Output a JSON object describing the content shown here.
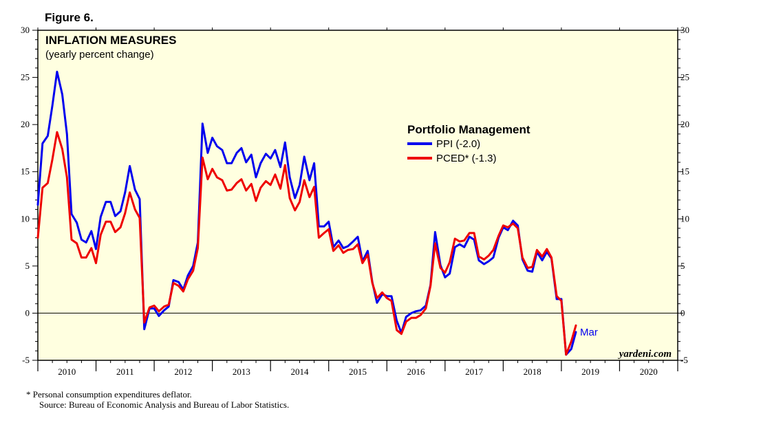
{
  "figure_label": "Figure 6.",
  "chart_data": {
    "type": "line",
    "title": "INFLATION MEASURES",
    "subtitle": "(yearly percent change)",
    "ylim": [
      -5,
      30
    ],
    "yticks": [
      -5,
      0,
      5,
      10,
      15,
      20,
      25,
      30
    ],
    "ytick_labels": [
      "-5",
      "0",
      "5",
      "10",
      "15",
      "20",
      "25",
      "30"
    ],
    "xlim": [
      2010.0,
      2021.0
    ],
    "year_labels": [
      "2010",
      "2011",
      "2012",
      "2013",
      "2014",
      "2015",
      "2016",
      "2017",
      "2018",
      "2019",
      "2020"
    ],
    "legend_title": "Portfolio Management",
    "grid": false,
    "series": [
      {
        "name": "PPI (-2.0)",
        "color": "#0000ee",
        "x": [
          2010.0,
          2010.08,
          2010.17,
          2010.25,
          2010.33,
          2010.42,
          2010.5,
          2010.58,
          2010.67,
          2010.75,
          2010.83,
          2010.92,
          2011.0,
          2011.08,
          2011.17,
          2011.25,
          2011.33,
          2011.42,
          2011.5,
          2011.58,
          2011.67,
          2011.75,
          2011.83,
          2011.92,
          2012.0,
          2012.08,
          2012.17,
          2012.25,
          2012.33,
          2012.42,
          2012.5,
          2012.58,
          2012.67,
          2012.75,
          2012.83,
          2012.92,
          2013.0,
          2013.08,
          2013.17,
          2013.25,
          2013.33,
          2013.42,
          2013.5,
          2013.58,
          2013.67,
          2013.75,
          2013.83,
          2013.92,
          2014.0,
          2014.08,
          2014.17,
          2014.25,
          2014.33,
          2014.42,
          2014.5,
          2014.58,
          2014.67,
          2014.75,
          2014.83,
          2014.92,
          2015.0,
          2015.08,
          2015.17,
          2015.25,
          2015.33,
          2015.42,
          2015.5,
          2015.58,
          2015.67,
          2015.75,
          2015.83,
          2015.92,
          2016.0,
          2016.08,
          2016.17,
          2016.25,
          2016.33,
          2016.42,
          2016.5,
          2016.58,
          2016.67,
          2016.75,
          2016.83,
          2016.92,
          2017.0,
          2017.08,
          2017.17,
          2017.25,
          2017.33,
          2017.42,
          2017.5,
          2017.58,
          2017.67,
          2017.75,
          2017.83,
          2017.92,
          2018.0,
          2018.08,
          2018.17,
          2018.25,
          2018.33,
          2018.42,
          2018.5,
          2018.58,
          2018.67,
          2018.75,
          2018.83,
          2018.92,
          2019.0,
          2019.08,
          2019.17,
          2019.25
        ],
        "values": [
          11.5,
          18.0,
          18.8,
          22.0,
          25.6,
          23.2,
          19.0,
          10.5,
          9.6,
          7.8,
          7.5,
          8.7,
          6.8,
          10.2,
          11.8,
          11.8,
          10.3,
          10.8,
          12.8,
          15.6,
          13.1,
          12.1,
          -1.7,
          0.5,
          0.5,
          -0.3,
          0.3,
          0.7,
          3.5,
          3.3,
          2.5,
          4.0,
          5.0,
          7.5,
          20.1,
          17.0,
          18.6,
          17.7,
          17.3,
          15.9,
          15.9,
          17.0,
          17.5,
          16.0,
          16.8,
          14.4,
          15.9,
          16.9,
          16.4,
          17.3,
          15.5,
          18.1,
          14.4,
          12.2,
          13.6,
          16.6,
          14.1,
          15.9,
          9.2,
          9.2,
          9.7,
          7.0,
          7.7,
          6.9,
          7.1,
          7.6,
          8.1,
          5.5,
          6.6,
          3.3,
          1.1,
          2.0,
          1.8,
          1.8,
          -0.8,
          -2.1,
          -0.4,
          0.0,
          0.2,
          0.3,
          0.8,
          3.0,
          8.6,
          5.1,
          3.8,
          4.2,
          7.0,
          7.3,
          7.0,
          8.1,
          7.8,
          5.6,
          5.2,
          5.5,
          5.9,
          8.0,
          9.1,
          8.8,
          9.8,
          9.3,
          5.7,
          4.5,
          4.4,
          6.5,
          5.6,
          6.5,
          5.8,
          1.5,
          1.5,
          -4.4,
          -3.8,
          -2.0
        ]
      },
      {
        "name": "PCED* (-1.3)",
        "color": "#ee0000",
        "x": [
          2010.0,
          2010.08,
          2010.17,
          2010.25,
          2010.33,
          2010.42,
          2010.5,
          2010.58,
          2010.67,
          2010.75,
          2010.83,
          2010.92,
          2011.0,
          2011.08,
          2011.17,
          2011.25,
          2011.33,
          2011.42,
          2011.5,
          2011.58,
          2011.67,
          2011.75,
          2011.83,
          2011.92,
          2012.0,
          2012.08,
          2012.17,
          2012.25,
          2012.33,
          2012.42,
          2012.5,
          2012.58,
          2012.67,
          2012.75,
          2012.83,
          2012.92,
          2013.0,
          2013.08,
          2013.17,
          2013.25,
          2013.33,
          2013.42,
          2013.5,
          2013.58,
          2013.67,
          2013.75,
          2013.83,
          2013.92,
          2014.0,
          2014.08,
          2014.17,
          2014.25,
          2014.33,
          2014.42,
          2014.5,
          2014.58,
          2014.67,
          2014.75,
          2014.83,
          2014.92,
          2015.0,
          2015.08,
          2015.17,
          2015.25,
          2015.33,
          2015.42,
          2015.5,
          2015.58,
          2015.67,
          2015.75,
          2015.83,
          2015.92,
          2016.0,
          2016.08,
          2016.17,
          2016.25,
          2016.33,
          2016.42,
          2016.5,
          2016.58,
          2016.67,
          2016.75,
          2016.83,
          2016.92,
          2017.0,
          2017.08,
          2017.17,
          2017.25,
          2017.33,
          2017.42,
          2017.5,
          2017.58,
          2017.67,
          2017.75,
          2017.83,
          2017.92,
          2018.0,
          2018.08,
          2018.17,
          2018.25,
          2018.33,
          2018.42,
          2018.5,
          2018.58,
          2018.67,
          2018.75,
          2018.83,
          2018.92,
          2019.0,
          2019.08,
          2019.17,
          2019.25
        ],
        "values": [
          8.0,
          13.3,
          13.8,
          16.3,
          19.2,
          17.4,
          14.4,
          7.8,
          7.4,
          5.9,
          5.9,
          6.9,
          5.3,
          8.3,
          9.7,
          9.7,
          8.6,
          9.1,
          10.6,
          12.8,
          11.0,
          10.1,
          -1.0,
          0.6,
          0.8,
          0.2,
          0.7,
          0.9,
          3.2,
          2.9,
          2.3,
          3.6,
          4.5,
          6.9,
          16.5,
          14.2,
          15.3,
          14.4,
          14.1,
          13.0,
          13.1,
          13.8,
          14.2,
          13.0,
          13.7,
          11.9,
          13.3,
          14.0,
          13.6,
          14.7,
          13.2,
          15.7,
          12.2,
          10.9,
          11.8,
          14.1,
          12.3,
          13.4,
          8.0,
          8.5,
          8.9,
          6.6,
          7.2,
          6.4,
          6.7,
          6.8,
          7.3,
          5.3,
          6.2,
          3.2,
          1.6,
          2.2,
          1.6,
          1.3,
          -1.8,
          -2.2,
          -0.9,
          -0.5,
          -0.5,
          -0.2,
          0.5,
          2.9,
          7.4,
          4.8,
          4.3,
          5.4,
          7.9,
          7.6,
          7.7,
          8.5,
          8.5,
          6.0,
          5.7,
          6.1,
          6.7,
          8.2,
          9.3,
          9.1,
          9.5,
          9.0,
          5.9,
          4.8,
          4.9,
          6.7,
          6.0,
          6.8,
          5.9,
          1.8,
          1.3,
          -4.4,
          -3.0,
          -1.3
        ]
      }
    ],
    "annotations": [
      {
        "text": "Mar",
        "x": 2019.25,
        "y": -2.0,
        "color": "#0000ee"
      }
    ],
    "brand": "yardeni.com"
  },
  "footnotes": [
    "*   Personal consumption expenditures deflator.",
    "Source: Bureau of Economic Analysis and Bureau of Labor Statistics."
  ]
}
